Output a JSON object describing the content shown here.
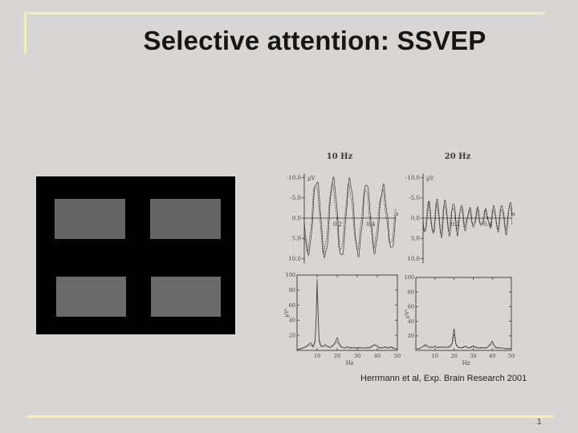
{
  "slide": {
    "title": "Selective attention: SSVEP",
    "citation": "Herrmann et al, Exp. Brain Research 2001",
    "page_number": "1"
  },
  "colors": {
    "background": "#d7d6d4",
    "accent_line": "#f2eec3",
    "figure_ink": "#3a3a3a",
    "stimulus_background": "#010101",
    "stimulus_patch_top": "#646464",
    "stimulus_patch_bottom": "#6a6a6a"
  },
  "stimulus": {
    "description": "black panel with four gray flickering rectangles (2 x 2 grid)",
    "patch_count": 4
  },
  "chart_data": [
    {
      "type": "line",
      "subtype": "steady-state evoked potential time series",
      "title": "10 Hz",
      "ylabel": "µV",
      "xlabel": "s",
      "ylim": [
        -10,
        10
      ],
      "y_axis_inverted": true,
      "x_range_s": [
        0,
        0.55
      ],
      "y_tick_values": [
        -10,
        -5,
        0,
        5,
        10
      ],
      "y_tick_labels": [
        "-10.0",
        "-5.0",
        "0.0",
        "5.0",
        "10.0"
      ],
      "x_tick_values": [
        0.2,
        0.4
      ],
      "x_tick_labels": [
        "0.2",
        "0.4"
      ],
      "grid": false,
      "series": [
        {
          "name": "trace-1",
          "freq_hz": 10,
          "amp_uv": 8.6,
          "amp_mod_uv": 1.1,
          "amp_mod_hz": 1.4,
          "phase_rad": 0.0,
          "noise_uv": 0.7,
          "dash": ""
        },
        {
          "name": "trace-2",
          "freq_hz": 10,
          "amp_uv": 7.3,
          "amp_mod_uv": 1.0,
          "amp_mod_hz": 1.1,
          "phase_rad": 0.4,
          "noise_uv": 0.6,
          "dash": "2 1.2"
        }
      ]
    },
    {
      "type": "line",
      "subtype": "steady-state evoked potential time series",
      "title": "20 Hz",
      "ylabel": "µV",
      "xlabel": "s",
      "ylim": [
        -10,
        10
      ],
      "y_axis_inverted": true,
      "x_range_s": [
        0,
        0.55
      ],
      "y_tick_values": [
        -10,
        -5,
        0,
        5,
        10
      ],
      "y_tick_labels": [
        "-10.0",
        "-5.0",
        "0.0",
        "5.0",
        "10.0"
      ],
      "x_tick_values": [
        0.2,
        0.4
      ],
      "x_tick_labels": [
        "0.2",
        "0.4"
      ],
      "grid": false,
      "series": [
        {
          "name": "trace-1",
          "freq_hz": 20,
          "amp_uv": 3.3,
          "amp_mod_uv": 1.2,
          "amp_mod_hz": 2.1,
          "phase_rad": 0.0,
          "noise_uv": 0.5,
          "dash": ""
        },
        {
          "name": "trace-2",
          "freq_hz": 20,
          "amp_uv": 2.7,
          "amp_mod_uv": 1.0,
          "amp_mod_hz": 1.7,
          "phase_rad": 0.5,
          "noise_uv": 0.45,
          "dash": "2 1.2"
        }
      ]
    },
    {
      "type": "line",
      "subtype": "power spectrum of 10 Hz stimulation (peak at 10 Hz, harmonic at 20 Hz)",
      "title": "",
      "ylabel": "µV²",
      "xlabel": "Hz",
      "xlim": [
        0,
        50
      ],
      "ylim": [
        0,
        100
      ],
      "x_tick_values": [
        10,
        20,
        30,
        40,
        50
      ],
      "x_tick_labels": [
        "10",
        "20",
        "30",
        "40",
        "50"
      ],
      "y_tick_values": [
        20,
        40,
        60,
        80,
        100
      ],
      "y_tick_labels": [
        "20",
        "40",
        "60",
        "80",
        "100"
      ],
      "grid": false,
      "series": [
        {
          "name": "trace-1",
          "dash": "",
          "points": [
            [
              0,
              1
            ],
            [
              2,
              2
            ],
            [
              3,
              3
            ],
            [
              4,
              4
            ],
            [
              5,
              5
            ],
            [
              6,
              9
            ],
            [
              7,
              10
            ],
            [
              8,
              5
            ],
            [
              9,
              13
            ],
            [
              9.5,
              45
            ],
            [
              10,
              95
            ],
            [
              10.5,
              50
            ],
            [
              11,
              14
            ],
            [
              12,
              6
            ],
            [
              13,
              5
            ],
            [
              14,
              8
            ],
            [
              15,
              6
            ],
            [
              16,
              4
            ],
            [
              17,
              5
            ],
            [
              18,
              7
            ],
            [
              19,
              11
            ],
            [
              20,
              17
            ],
            [
              21,
              9
            ],
            [
              22,
              5
            ],
            [
              23,
              4
            ],
            [
              24,
              3
            ],
            [
              25,
              5
            ],
            [
              26,
              4
            ],
            [
              27,
              3
            ],
            [
              28,
              4
            ],
            [
              29,
              3
            ],
            [
              30,
              4
            ],
            [
              31,
              3
            ],
            [
              32,
              4
            ],
            [
              33,
              3
            ],
            [
              34,
              3
            ],
            [
              35,
              4
            ],
            [
              36,
              3
            ],
            [
              37,
              5
            ],
            [
              38,
              7
            ],
            [
              39,
              8
            ],
            [
              40,
              6
            ],
            [
              41,
              4
            ],
            [
              42,
              3
            ],
            [
              43,
              4
            ],
            [
              44,
              5
            ],
            [
              45,
              3
            ],
            [
              46,
              4
            ],
            [
              47,
              5
            ],
            [
              48,
              3
            ],
            [
              49,
              2
            ],
            [
              50,
              2
            ]
          ]
        },
        {
          "name": "trace-2",
          "dash": "2 1.4",
          "points": [
            [
              0,
              1
            ],
            [
              2,
              3
            ],
            [
              4,
              5
            ],
            [
              5,
              7
            ],
            [
              6,
              6
            ],
            [
              7,
              8
            ],
            [
              8,
              4
            ],
            [
              9,
              10
            ],
            [
              9.5,
              40
            ],
            [
              10,
              84
            ],
            [
              10.5,
              42
            ],
            [
              11,
              10
            ],
            [
              12,
              5
            ],
            [
              13,
              6
            ],
            [
              14,
              6
            ],
            [
              15,
              4
            ],
            [
              16,
              5
            ],
            [
              17,
              4
            ],
            [
              18,
              6
            ],
            [
              19,
              9
            ],
            [
              20,
              12
            ],
            [
              21,
              7
            ],
            [
              22,
              4
            ],
            [
              23,
              3
            ],
            [
              24,
              4
            ],
            [
              25,
              4
            ],
            [
              26,
              3
            ],
            [
              27,
              4
            ],
            [
              28,
              3
            ],
            [
              29,
              4
            ],
            [
              30,
              3
            ],
            [
              31,
              4
            ],
            [
              32,
              3
            ],
            [
              33,
              4
            ],
            [
              34,
              3
            ],
            [
              35,
              3
            ],
            [
              36,
              4
            ],
            [
              37,
              4
            ],
            [
              38,
              6
            ],
            [
              39,
              6
            ],
            [
              40,
              5
            ],
            [
              41,
              3
            ],
            [
              42,
              4
            ],
            [
              43,
              3
            ],
            [
              44,
              4
            ],
            [
              45,
              4
            ],
            [
              46,
              3
            ],
            [
              47,
              4
            ],
            [
              48,
              2
            ],
            [
              49,
              3
            ],
            [
              50,
              2
            ]
          ]
        }
      ]
    },
    {
      "type": "line",
      "subtype": "power spectrum of 20 Hz stimulation (peak at 20 Hz, harmonic at 40 Hz)",
      "title": "",
      "ylabel": "µV²",
      "xlabel": "Hz",
      "xlim": [
        0,
        50
      ],
      "ylim": [
        0,
        100
      ],
      "x_tick_values": [
        10,
        20,
        30,
        40,
        50
      ],
      "x_tick_labels": [
        "10",
        "20",
        "30",
        "40",
        "50"
      ],
      "y_tick_values": [
        20,
        40,
        60,
        80,
        100
      ],
      "y_tick_labels": [
        "20",
        "40",
        "60",
        "80",
        "100"
      ],
      "grid": false,
      "series": [
        {
          "name": "trace-1",
          "dash": "",
          "points": [
            [
              0,
              2
            ],
            [
              2,
              3
            ],
            [
              3,
              4
            ],
            [
              4,
              6
            ],
            [
              5,
              8
            ],
            [
              6,
              6
            ],
            [
              7,
              4
            ],
            [
              8,
              5
            ],
            [
              9,
              4
            ],
            [
              10,
              6
            ],
            [
              11,
              4
            ],
            [
              12,
              4
            ],
            [
              13,
              5
            ],
            [
              14,
              4
            ],
            [
              15,
              5
            ],
            [
              16,
              4
            ],
            [
              17,
              5
            ],
            [
              18,
              6
            ],
            [
              19,
              10
            ],
            [
              19.5,
              20
            ],
            [
              20,
              30
            ],
            [
              20.5,
              19
            ],
            [
              21,
              9
            ],
            [
              22,
              5
            ],
            [
              23,
              4
            ],
            [
              24,
              4
            ],
            [
              25,
              5
            ],
            [
              26,
              6
            ],
            [
              27,
              4
            ],
            [
              28,
              4
            ],
            [
              29,
              5
            ],
            [
              30,
              6
            ],
            [
              31,
              5
            ],
            [
              32,
              4
            ],
            [
              33,
              3
            ],
            [
              34,
              4
            ],
            [
              35,
              4
            ],
            [
              36,
              3
            ],
            [
              37,
              4
            ],
            [
              38,
              6
            ],
            [
              39,
              9
            ],
            [
              40,
              13
            ],
            [
              41,
              7
            ],
            [
              42,
              4
            ],
            [
              43,
              3
            ],
            [
              44,
              4
            ],
            [
              45,
              3
            ],
            [
              46,
              3
            ],
            [
              47,
              3
            ],
            [
              48,
              2
            ],
            [
              49,
              3
            ],
            [
              50,
              2
            ]
          ]
        },
        {
          "name": "trace-2",
          "dash": "2 1.4",
          "points": [
            [
              0,
              2
            ],
            [
              2,
              2
            ],
            [
              3,
              4
            ],
            [
              4,
              5
            ],
            [
              5,
              7
            ],
            [
              6,
              5
            ],
            [
              7,
              4
            ],
            [
              8,
              4
            ],
            [
              9,
              5
            ],
            [
              10,
              5
            ],
            [
              11,
              4
            ],
            [
              12,
              5
            ],
            [
              13,
              4
            ],
            [
              14,
              5
            ],
            [
              15,
              4
            ],
            [
              16,
              4
            ],
            [
              17,
              4
            ],
            [
              18,
              5
            ],
            [
              19,
              8
            ],
            [
              19.5,
              15
            ],
            [
              20,
              23
            ],
            [
              20.5,
              14
            ],
            [
              21,
              7
            ],
            [
              22,
              4
            ],
            [
              23,
              4
            ],
            [
              24,
              3
            ],
            [
              25,
              4
            ],
            [
              26,
              5
            ],
            [
              27,
              4
            ],
            [
              28,
              3
            ],
            [
              29,
              4
            ],
            [
              30,
              5
            ],
            [
              31,
              4
            ],
            [
              32,
              3
            ],
            [
              33,
              4
            ],
            [
              34,
              3
            ],
            [
              35,
              4
            ],
            [
              36,
              4
            ],
            [
              37,
              3
            ],
            [
              38,
              5
            ],
            [
              39,
              7
            ],
            [
              40,
              10
            ],
            [
              41,
              6
            ],
            [
              42,
              3
            ],
            [
              43,
              4
            ],
            [
              44,
              3
            ],
            [
              45,
              4
            ],
            [
              46,
              3
            ],
            [
              47,
              2
            ],
            [
              48,
              3
            ],
            [
              49,
              2
            ],
            [
              50,
              2
            ]
          ]
        }
      ]
    }
  ]
}
